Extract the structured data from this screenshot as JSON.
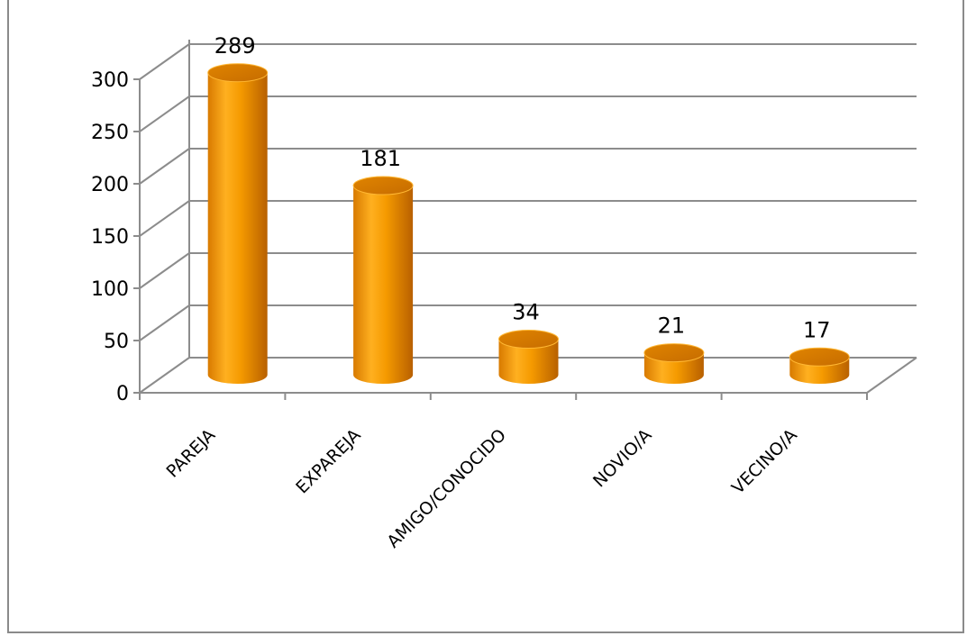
{
  "chart_data": {
    "type": "bar",
    "style": "3d-cylinder",
    "title": "",
    "xlabel": "",
    "ylabel": "",
    "categories": [
      "PAREJA",
      "EXPAREJA",
      "AMIGO/CONOCIDO",
      "NOVIO/A",
      "VECINO/A"
    ],
    "values": [
      289,
      181,
      34,
      21,
      17
    ],
    "data_labels": [
      "289",
      "181",
      "34",
      "21",
      "17"
    ],
    "ylim": [
      0,
      300
    ],
    "yticks": [
      0,
      50,
      100,
      150,
      200,
      250,
      300
    ],
    "grid": true,
    "legend": "none",
    "colors": {
      "bar": "#f59a00",
      "bar_light": "#ffc040",
      "bar_dark": "#c26a00",
      "grid": "#8c8c8c"
    }
  }
}
